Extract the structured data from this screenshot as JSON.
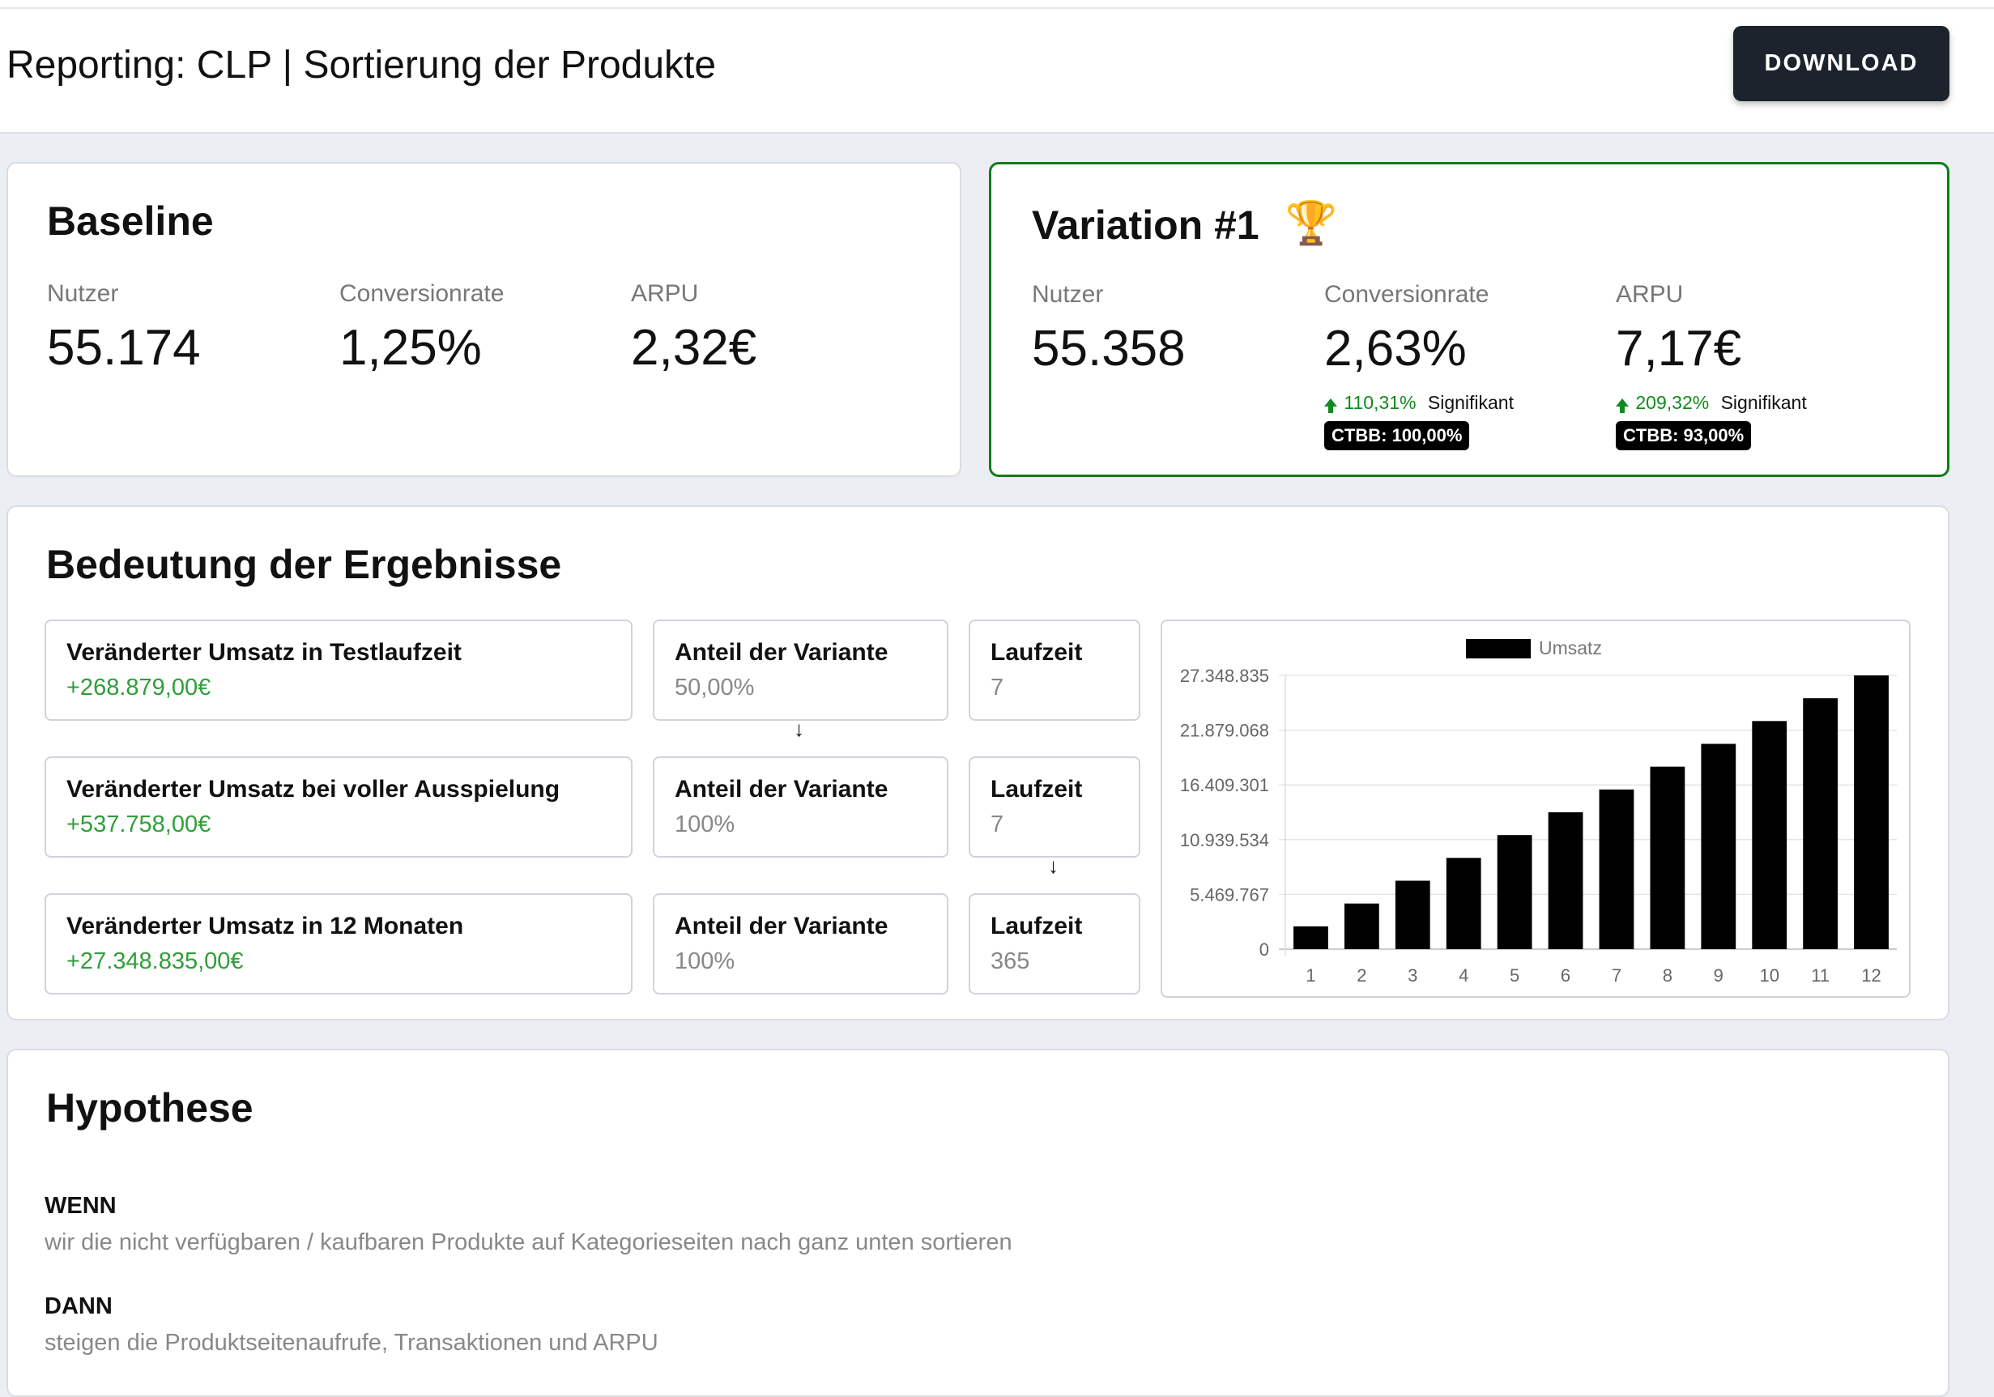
{
  "header": {
    "title": "Reporting: CLP | Sortierung der Produkte",
    "download_label": "DOWNLOAD"
  },
  "baseline": {
    "title": "Baseline",
    "metrics": [
      {
        "label": "Nutzer",
        "value": "55.174"
      },
      {
        "label": "Conversionrate",
        "value": "1,25%"
      },
      {
        "label": "ARPU",
        "value": "2,32€"
      }
    ]
  },
  "variation": {
    "title": "Variation #1",
    "trophy": "🏆",
    "trophy_icon": "trophy-icon",
    "metrics": [
      {
        "label": "Nutzer",
        "value": "55.358"
      },
      {
        "label": "Conversionrate",
        "value": "2,63%",
        "delta": "110,31%",
        "significance": "Signifikant",
        "ctbb": "CTBB: 100,00%"
      },
      {
        "label": "ARPU",
        "value": "7,17€",
        "delta": "209,32%",
        "significance": "Signifikant",
        "ctbb": "CTBB: 93,00%"
      }
    ],
    "accent": "#0e7d17"
  },
  "results": {
    "title": "Bedeutung der Ergebnisse",
    "rows": [
      {
        "umsatz_label": "Veränderter Umsatz in Testlaufzeit",
        "umsatz_value": "+268.879,00€",
        "anteil_label": "Anteil der Variante",
        "anteil_value": "50,00%",
        "laufzeit_label": "Laufzeit",
        "laufzeit_value": "7"
      },
      {
        "umsatz_label": "Veränderter Umsatz bei voller Ausspielung",
        "umsatz_value": "+537.758,00€",
        "anteil_label": "Anteil der Variante",
        "anteil_value": "100%",
        "laufzeit_label": "Laufzeit",
        "laufzeit_value": "7"
      },
      {
        "umsatz_label": "Veränderter Umsatz in 12 Monaten",
        "umsatz_value": "+27.348.835,00€",
        "anteil_label": "Anteil der Variante",
        "anteil_value": "100%",
        "laufzeit_label": "Laufzeit",
        "laufzeit_value": "365"
      }
    ],
    "arrow_glyph": "↓"
  },
  "chart_data": {
    "type": "bar",
    "categories": [
      "1",
      "2",
      "3",
      "4",
      "5",
      "6",
      "7",
      "8",
      "9",
      "10",
      "11",
      "12"
    ],
    "series": [
      {
        "name": "Umsatz",
        "values": [
          2279070,
          4558139,
          6837209,
          9116278,
          11395348,
          13674418,
          15953487,
          18232557,
          20511626,
          22790696,
          25069765,
          27348835
        ]
      }
    ],
    "ylim": [
      0,
      27348835
    ],
    "yticks": [
      "0",
      "5.469.767",
      "10.939.534",
      "16.409.301",
      "21.879.068",
      "27.348.835"
    ],
    "legend": "top-center",
    "grid": true,
    "bar_color": "#000000"
  },
  "hypothese": {
    "title": "Hypothese",
    "wenn_label": "WENN",
    "wenn_text": "wir die nicht verfügbaren / kaufbaren Produkte auf Kategorieseiten nach ganz unten sortieren",
    "dann_label": "DANN",
    "dann_text": "steigen die Produktseitenaufrufe, Transaktionen und ARPU"
  }
}
